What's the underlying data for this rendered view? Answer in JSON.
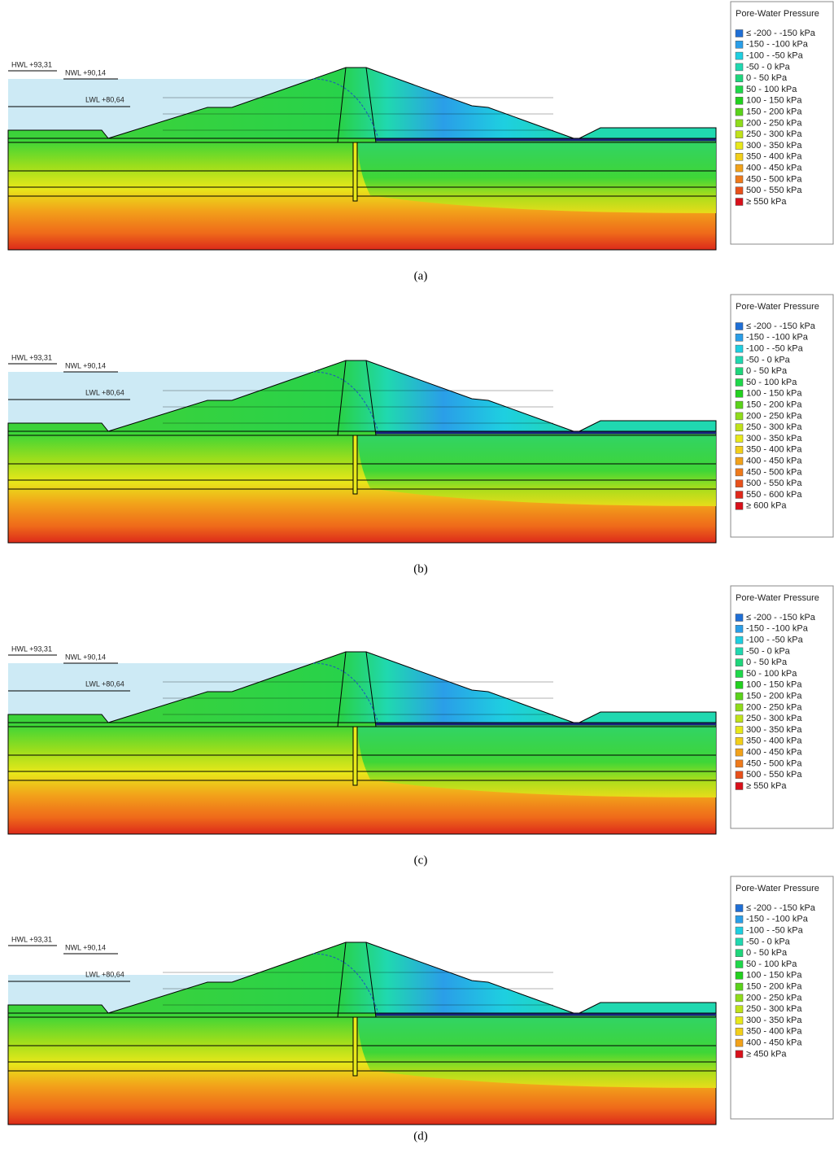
{
  "panels": [
    {
      "caption": "(a)",
      "water_levels": [
        "HWL +93,31",
        "NWL +90,14",
        "LWL +80,64"
      ],
      "legend": {
        "title": "Pore-Water Pressure",
        "items": [
          {
            "label": "≤ -200 - -150 kPa",
            "color": "#1f6fd6"
          },
          {
            "label": "-150 - -100 kPa",
            "color": "#2a9ee8"
          },
          {
            "label": "-100 - -50 kPa",
            "color": "#1ecfe0"
          },
          {
            "label": "-50 - 0 kPa",
            "color": "#20d8b0"
          },
          {
            "label": "0 - 50 kPa",
            "color": "#1ed67c"
          },
          {
            "label": "50 - 100 kPa",
            "color": "#1ed84a"
          },
          {
            "label": "100 - 150 kPa",
            "color": "#22d11f"
          },
          {
            "label": "150 - 200 kPa",
            "color": "#5ad31a"
          },
          {
            "label": "200 - 250 kPa",
            "color": "#8fdc1a"
          },
          {
            "label": "250 - 300 kPa",
            "color": "#c0e21a"
          },
          {
            "label": "300 - 350 kPa",
            "color": "#e8e81a"
          },
          {
            "label": "350 - 400 kPa",
            "color": "#f2cf1a"
          },
          {
            "label": "400 - 450 kPa",
            "color": "#f2a21a"
          },
          {
            "label": "450 - 500 kPa",
            "color": "#ef7a1a"
          },
          {
            "label": "500 - 550 kPa",
            "color": "#e8501a"
          },
          {
            "label": "≥ 550 kPa",
            "color": "#d8101a"
          }
        ]
      }
    },
    {
      "caption": "(b)",
      "water_levels": [
        "HWL +93,31",
        "NWL +90,14",
        "LWL +80,64"
      ],
      "legend": {
        "title": "Pore-Water Pressure",
        "items": [
          {
            "label": "≤ -200 - -150 kPa",
            "color": "#1f6fd6"
          },
          {
            "label": "-150 - -100 kPa",
            "color": "#2a9ee8"
          },
          {
            "label": "-100 - -50 kPa",
            "color": "#1ecfe0"
          },
          {
            "label": "-50 - 0 kPa",
            "color": "#20d8b0"
          },
          {
            "label": "0 - 50 kPa",
            "color": "#1ed67c"
          },
          {
            "label": "50 - 100 kPa",
            "color": "#1ed84a"
          },
          {
            "label": "100 - 150 kPa",
            "color": "#22d11f"
          },
          {
            "label": "150 - 200 kPa",
            "color": "#5ad31a"
          },
          {
            "label": "200 - 250 kPa",
            "color": "#8fdc1a"
          },
          {
            "label": "250 - 300 kPa",
            "color": "#c0e21a"
          },
          {
            "label": "300 - 350 kPa",
            "color": "#e8e81a"
          },
          {
            "label": "350 - 400 kPa",
            "color": "#f2cf1a"
          },
          {
            "label": "400 - 450 kPa",
            "color": "#f2a21a"
          },
          {
            "label": "450 - 500 kPa",
            "color": "#ef7a1a"
          },
          {
            "label": "500 - 550 kPa",
            "color": "#e8501a"
          },
          {
            "label": "550 - 600 kPa",
            "color": "#e0281a"
          },
          {
            "label": "≥ 600 kPa",
            "color": "#d8101a"
          }
        ]
      }
    },
    {
      "caption": "(c)",
      "water_levels": [
        "HWL +93,31",
        "NWL +90,14",
        "LWL +80,64"
      ],
      "legend": {
        "title": "Pore-Water Pressure",
        "items": [
          {
            "label": "≤ -200 - -150 kPa",
            "color": "#1f6fd6"
          },
          {
            "label": "-150 - -100 kPa",
            "color": "#2a9ee8"
          },
          {
            "label": "-100 - -50 kPa",
            "color": "#1ecfe0"
          },
          {
            "label": "-50 - 0 kPa",
            "color": "#20d8b0"
          },
          {
            "label": "0 - 50 kPa",
            "color": "#1ed67c"
          },
          {
            "label": "50 - 100 kPa",
            "color": "#1ed84a"
          },
          {
            "label": "100 - 150 kPa",
            "color": "#22d11f"
          },
          {
            "label": "150 - 200 kPa",
            "color": "#5ad31a"
          },
          {
            "label": "200 - 250 kPa",
            "color": "#8fdc1a"
          },
          {
            "label": "250 - 300 kPa",
            "color": "#c0e21a"
          },
          {
            "label": "300 - 350 kPa",
            "color": "#e8e81a"
          },
          {
            "label": "350 - 400 kPa",
            "color": "#f2cf1a"
          },
          {
            "label": "400 - 450 kPa",
            "color": "#f2a21a"
          },
          {
            "label": "450 - 500 kPa",
            "color": "#ef7a1a"
          },
          {
            "label": "500 - 550 kPa",
            "color": "#e8501a"
          },
          {
            "label": "≥ 550 kPa",
            "color": "#d8101a"
          }
        ]
      }
    },
    {
      "caption": "(d)",
      "water_levels": [
        "HWL +93,31",
        "NWL +90,14",
        "LWL +80,64"
      ],
      "legend": {
        "title": "Pore-Water Pressure",
        "items": [
          {
            "label": "≤ -200 - -150 kPa",
            "color": "#1f6fd6"
          },
          {
            "label": "-150 - -100 kPa",
            "color": "#2a9ee8"
          },
          {
            "label": "-100 - -50 kPa",
            "color": "#1ecfe0"
          },
          {
            "label": "-50 - 0 kPa",
            "color": "#20d8b0"
          },
          {
            "label": "0 - 50 kPa",
            "color": "#1ed67c"
          },
          {
            "label": "50 - 100 kPa",
            "color": "#1ed84a"
          },
          {
            "label": "100 - 150 kPa",
            "color": "#22d11f"
          },
          {
            "label": "150 - 200 kPa",
            "color": "#5ad31a"
          },
          {
            "label": "200 - 250 kPa",
            "color": "#8fdc1a"
          },
          {
            "label": "250 - 300 kPa",
            "color": "#c0e21a"
          },
          {
            "label": "300 - 350 kPa",
            "color": "#e8e81a"
          },
          {
            "label": "350 - 400 kPa",
            "color": "#f2cf1a"
          },
          {
            "label": "400 - 450 kPa",
            "color": "#f2a21a"
          },
          {
            "label": "≥ 450 kPa",
            "color": "#d8101a"
          }
        ]
      }
    }
  ]
}
